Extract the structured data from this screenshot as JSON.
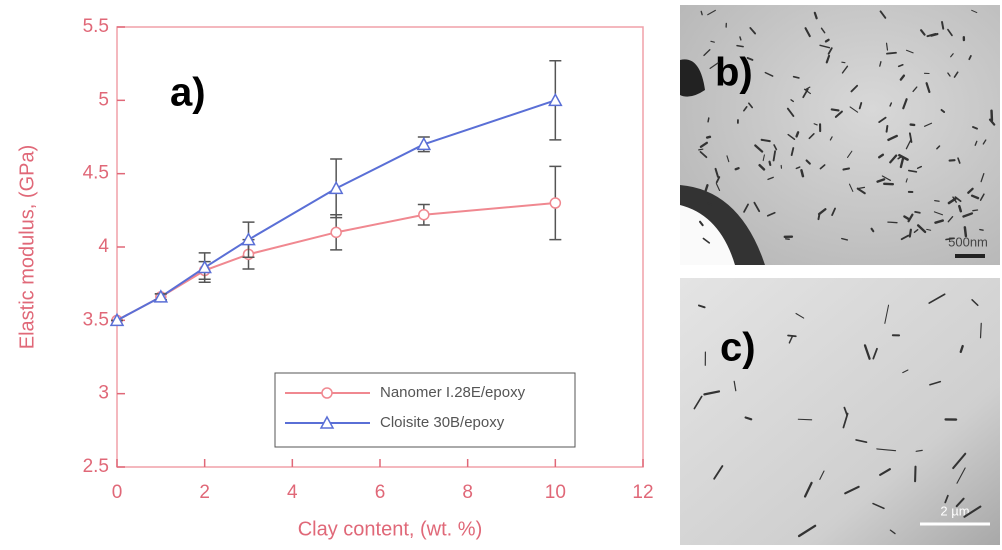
{
  "chart_data": {
    "type": "line",
    "panel_label": "a)",
    "x_label": "Clay content, (wt. %)",
    "y_label": "Elastic modulus, (GPa)",
    "x": [
      0,
      1,
      2,
      3,
      5,
      7,
      10
    ],
    "series": [
      {
        "name": "Nanomer I.28E/epoxy",
        "color": "#f08890",
        "marker": "circle",
        "values": [
          3.5,
          3.66,
          3.84,
          3.95,
          4.1,
          4.22,
          4.3
        ],
        "errors": [
          0,
          0.02,
          0.06,
          0.1,
          0.12,
          0.07,
          0.25
        ]
      },
      {
        "name": "Cloisite 30B/epoxy",
        "color": "#5a6fd6",
        "marker": "triangle",
        "values": [
          3.5,
          3.66,
          3.86,
          4.05,
          4.4,
          4.7,
          5.0
        ],
        "errors": [
          0,
          0.02,
          0.1,
          0.12,
          0.2,
          0.05,
          0.27
        ]
      }
    ],
    "xlim": [
      0,
      12
    ],
    "xticks": [
      0,
      2,
      4,
      6,
      8,
      10,
      12
    ],
    "ylim": [
      2.5,
      5.5
    ],
    "yticks": [
      2.5,
      3,
      3.5,
      4,
      4.5,
      5,
      5.5
    ],
    "legend": "bottom-right"
  },
  "panels": [
    {
      "label": "b)",
      "scale_bar": "500nm"
    },
    {
      "label": "c)",
      "scale_bar": "2 µm"
    }
  ]
}
